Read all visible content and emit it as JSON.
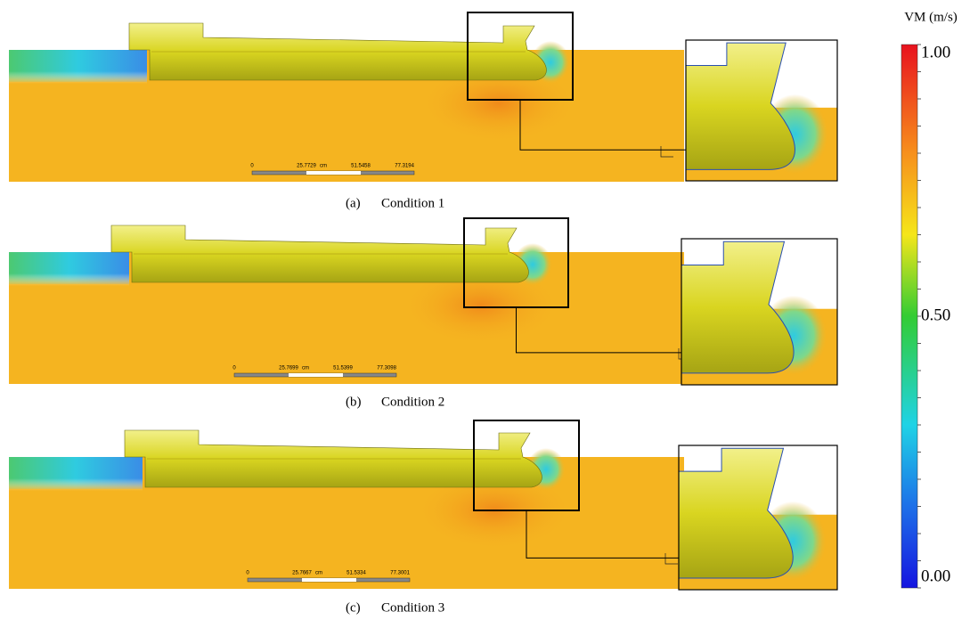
{
  "panels": [
    {
      "caption": {
        "label": "(a)",
        "text": "Condition 1"
      },
      "scale_bar": [
        "0",
        "25.7729",
        "cm",
        "51.5458",
        "77.3194"
      ]
    },
    {
      "caption": {
        "label": "(b)",
        "text": "Condition 2"
      },
      "scale_bar": [
        "0",
        "25.7699",
        "cm",
        "51.5399",
        "77.3098"
      ]
    },
    {
      "caption": {
        "label": "(c)",
        "text": "Condition 3"
      },
      "scale_bar": [
        "0",
        "25.7667",
        "cm",
        "51.5334",
        "77.3001"
      ]
    }
  ],
  "colorbar": {
    "title": "VM  (m/s)",
    "labels": [
      "1.00",
      "0.50",
      "0.00"
    ]
  }
}
